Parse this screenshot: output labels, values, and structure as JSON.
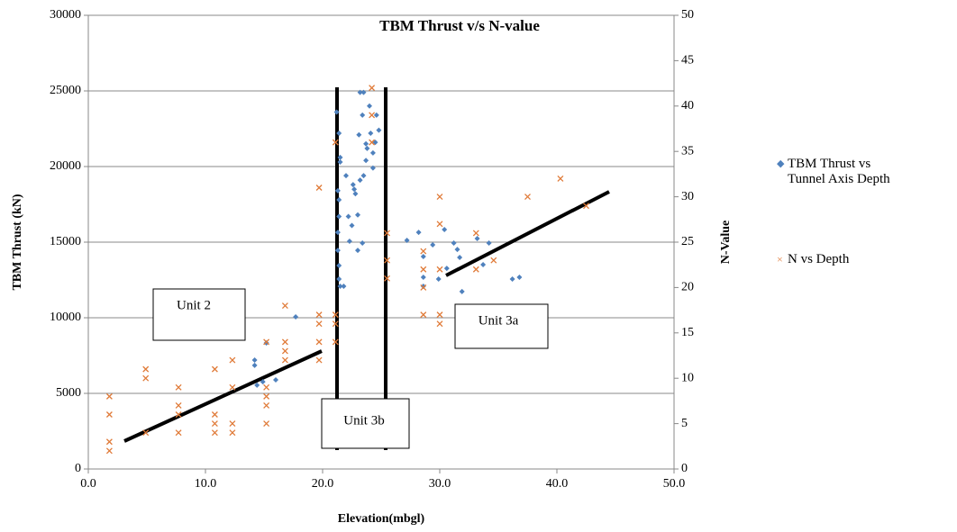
{
  "chart_data": {
    "type": "scatter",
    "title": "TBM Thrust v/s N-value",
    "x_label": "Elevation(mbgl)",
    "y_label": "TBM Thrust (kN)",
    "y2_label": "N-Value",
    "xlim": [
      0,
      50
    ],
    "xticks": [
      {
        "value": 0,
        "label": "0.0"
      },
      {
        "value": 10,
        "label": "10.0"
      },
      {
        "value": 20,
        "label": "20.0"
      },
      {
        "value": 30,
        "label": "30.0"
      },
      {
        "value": 40,
        "label": "40.0"
      },
      {
        "value": 50,
        "label": "50.0"
      }
    ],
    "ylim": [
      0,
      30000
    ],
    "yticks": [
      0,
      5000,
      10000,
      15000,
      20000,
      25000,
      30000
    ],
    "y2lim": [
      0,
      50
    ],
    "y2ticks": [
      0,
      5,
      10,
      15,
      20,
      25,
      30,
      35,
      40,
      45,
      50
    ],
    "grid": true,
    "annotations": [
      "Unit 2",
      "Unit 3a",
      "Unit 3b"
    ],
    "series": [
      {
        "name": "TBM Thrust vs Tunnel Axis Depth",
        "color": "#4f81bd",
        "marker": "diamond",
        "x": [
          17.7,
          14.2,
          14.2,
          14.4,
          14.9,
          16,
          15.2,
          21.2,
          21.4,
          21.5,
          21.5,
          21.3,
          21.4,
          21.4,
          21.3,
          21.3,
          21.4,
          21.4,
          21.5,
          21.8,
          22,
          22.2,
          22.5,
          22.6,
          22.8,
          23,
          23,
          23.2,
          23.4,
          22.3,
          22.7,
          23.1,
          23.4,
          23.2,
          23.5,
          24,
          23.7,
          23.8,
          24.1,
          24.3,
          24.3,
          24.5,
          24.8,
          24.6,
          23.7,
          23.5,
          28.2,
          29.4,
          29.9,
          30.6,
          31.2,
          31.5,
          31.7,
          31.9,
          33.2,
          33.7,
          34.2,
          36.2,
          36.8,
          30.4,
          28.6,
          28.6,
          28.6,
          27.2
        ],
        "values": [
          10060,
          7200,
          6850,
          5540,
          5770,
          5890,
          8330,
          23600,
          22200,
          20600,
          20300,
          18400,
          17800,
          16700,
          15650,
          14460,
          13450,
          12560,
          12080,
          12080,
          19400,
          16700,
          16100,
          18800,
          18200,
          16800,
          14460,
          19100,
          14940,
          15060,
          18500,
          22100,
          23400,
          24900,
          24900,
          24000,
          21500,
          21200,
          22200,
          20900,
          19900,
          21600,
          22400,
          23400,
          20400,
          19400,
          15650,
          14820,
          12560,
          13270,
          14940,
          14520,
          13990,
          11730,
          15240,
          13510,
          14940,
          12560,
          12680,
          15830,
          12680,
          12080,
          14050,
          15120
        ]
      },
      {
        "name": "N vs Depth",
        "color": "#e07b39",
        "marker": "x",
        "axis": "y2",
        "x": [
          1.8,
          1.8,
          1.8,
          1.8,
          4.9,
          4.9,
          4.9,
          7.7,
          7.7,
          7.7,
          7.7,
          10.8,
          10.8,
          10.8,
          10.8,
          12.3,
          12.3,
          12.3,
          12.3,
          15.2,
          15.2,
          15.2,
          15.2,
          15.2,
          16.8,
          16.8,
          16.8,
          16.8,
          19.7,
          19.7,
          19.7,
          19.7,
          19.7,
          21.1,
          21.1,
          21.1,
          21.1,
          24.2,
          24.2,
          24.2,
          25.5,
          25.5,
          25.5,
          28.6,
          28.6,
          28.6,
          28.6,
          30,
          30,
          30,
          30,
          30,
          33.1,
          33.1,
          34.6,
          37.5,
          40.3,
          42.5
        ],
        "values": [
          8,
          6,
          3,
          2,
          11,
          10,
          4,
          9,
          7,
          6,
          4,
          11,
          6,
          5,
          4,
          12,
          9,
          5,
          4,
          14,
          9,
          8,
          7,
          5,
          18,
          14,
          13,
          12,
          31,
          17,
          16,
          14,
          12,
          36,
          17,
          16,
          14,
          42,
          39,
          36,
          26,
          23,
          21,
          24,
          22,
          20,
          17,
          30,
          27,
          22,
          17,
          16,
          26,
          22,
          23,
          30,
          32,
          29
        ]
      }
    ]
  }
}
